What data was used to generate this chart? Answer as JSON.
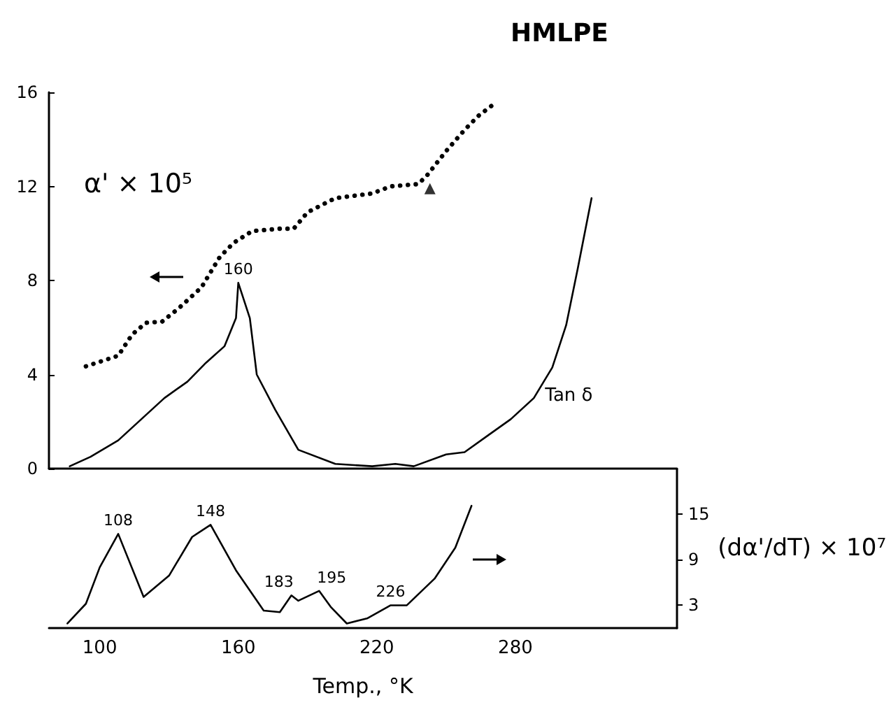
{
  "chart_data": [
    {
      "type": "line",
      "title": "HMLPE",
      "ylabel": "α' × 10⁵",
      "xlim": [
        78,
        350
      ],
      "xticks": [
        100,
        160,
        220,
        280
      ],
      "ylim": [
        0,
        16
      ],
      "yticks": [
        0,
        4,
        8,
        12,
        16
      ],
      "tick_labels": "y",
      "grid": false,
      "legend": false,
      "marker": "none",
      "series": [
        {
          "color": "#000000",
          "line_style": "dotted",
          "x": [
            94,
            108,
            114,
            120,
            127,
            134,
            144,
            152,
            158,
            166,
            178,
            184,
            190,
            202,
            218,
            226,
            238,
            242,
            250,
            258,
            264,
            272
          ],
          "values": [
            4.35,
            4.8,
            5.7,
            6.2,
            6.25,
            6.8,
            7.7,
            9.0,
            9.6,
            10.1,
            10.2,
            10.2,
            10.9,
            11.5,
            11.7,
            12.0,
            12.1,
            12.5,
            13.5,
            14.4,
            15.0,
            15.6
          ]
        },
        {
          "name": "Tan δ",
          "color": "#000000",
          "line_style": "solid",
          "x": [
            87,
            96,
            108,
            118,
            128,
            138,
            146,
            154,
            159,
            160,
            165,
            168,
            176,
            186,
            202,
            218,
            228,
            236,
            250,
            258,
            268,
            278,
            288,
            296,
            302,
            307,
            313
          ],
          "values": [
            0.1,
            0.5,
            1.2,
            2.1,
            3.0,
            3.7,
            4.5,
            5.2,
            6.4,
            7.9,
            6.4,
            4.0,
            2.5,
            0.8,
            0.2,
            0.1,
            0.2,
            0.1,
            0.6,
            0.7,
            1.4,
            2.1,
            3.0,
            4.3,
            6.1,
            8.5,
            11.5
          ]
        },
        {
          "type": "scatter",
          "marker": "triangle",
          "color": "#000000",
          "x": [
            243
          ],
          "values": [
            11.9
          ]
        }
      ],
      "annotations": [
        {
          "text": "160",
          "x": 160,
          "y": 7.9
        }
      ]
    },
    {
      "type": "line",
      "xlabel": "Temp., °K",
      "xlim": [
        78,
        350
      ],
      "xticks": [
        100,
        160,
        220,
        280
      ],
      "ylabel": "(dα'/dT) × 10⁷",
      "ylim": [
        0,
        21
      ],
      "yticks": [
        3,
        9,
        15
      ],
      "grid": false,
      "legend": false,
      "marker": "none",
      "series": [
        {
          "color": "#000000",
          "line_style": "solid",
          "x": [
            86,
            94,
            100,
            108,
            119,
            130,
            140,
            148,
            159,
            171,
            178,
            183,
            186,
            195,
            200,
            207,
            216,
            226,
            233,
            245,
            254,
            261
          ],
          "values": [
            0.6,
            3.2,
            8.0,
            12.4,
            4.1,
            6.9,
            12.0,
            13.6,
            7.6,
            2.3,
            2.1,
            4.3,
            3.6,
            4.9,
            2.8,
            0.6,
            1.3,
            3.0,
            3.0,
            6.5,
            10.6,
            16.1
          ]
        }
      ],
      "annotations": [
        {
          "text": "108",
          "x": 108,
          "y": 12.4
        },
        {
          "text": "148",
          "x": 148,
          "y": 13.6
        },
        {
          "text": "183",
          "x": 183,
          "y": 4.3
        },
        {
          "text": "195",
          "x": 195,
          "y": 4.9
        },
        {
          "text": "226",
          "x": 226,
          "y": 3.0
        }
      ]
    }
  ]
}
